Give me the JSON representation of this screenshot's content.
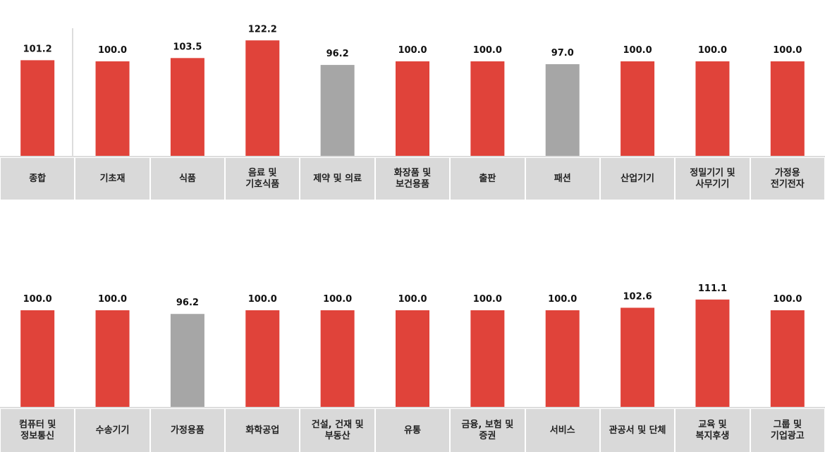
{
  "chart_data": [
    {
      "type": "bar",
      "categories": [
        "종합",
        "기초재",
        "식품",
        "음료 및\n기호식품",
        "제약 및 의료",
        "화장품 및\n보건용품",
        "출판",
        "패션",
        "산업기기",
        "정밀기기 및\n사무기기",
        "가정용\n전기전자"
      ],
      "values": [
        101.2,
        100.0,
        103.5,
        122.2,
        96.2,
        100.0,
        100.0,
        97.0,
        100.0,
        100.0,
        100.0
      ],
      "value_labels": [
        "101.2",
        "100.0",
        "103.5",
        "122.2",
        "96.2",
        "100.0",
        "100.0",
        "97.0",
        "100.0",
        "100.0",
        "100.0"
      ],
      "colors": [
        "#e0433a",
        "#e0433a",
        "#e0433a",
        "#e0433a",
        "#a6a6a6",
        "#e0433a",
        "#e0433a",
        "#a6a6a6",
        "#e0433a",
        "#e0433a",
        "#e0433a"
      ]
    },
    {
      "type": "bar",
      "categories": [
        "컴퓨터 및\n정보통신",
        "수송기기",
        "가정용품",
        "화학공업",
        "건설, 건재 및\n부동산",
        "유통",
        "금융, 보험 및\n증권",
        "서비스",
        "관공서 및 단체",
        "교육 및\n복지후생",
        "그룹 및\n기업광고"
      ],
      "values": [
        100.0,
        100.0,
        96.2,
        100.0,
        100.0,
        100.0,
        100.0,
        100.0,
        102.6,
        111.1,
        100.0
      ],
      "value_labels": [
        "100.0",
        "100.0",
        "96.2",
        "100.0",
        "100.0",
        "100.0",
        "100.0",
        "100.0",
        "102.6",
        "111.1",
        "100.0"
      ],
      "colors": [
        "#e0433a",
        "#e0433a",
        "#a6a6a6",
        "#e0433a",
        "#e0433a",
        "#e0433a",
        "#e0433a",
        "#e0433a",
        "#e0433a",
        "#e0433a",
        "#e0433a"
      ]
    }
  ]
}
